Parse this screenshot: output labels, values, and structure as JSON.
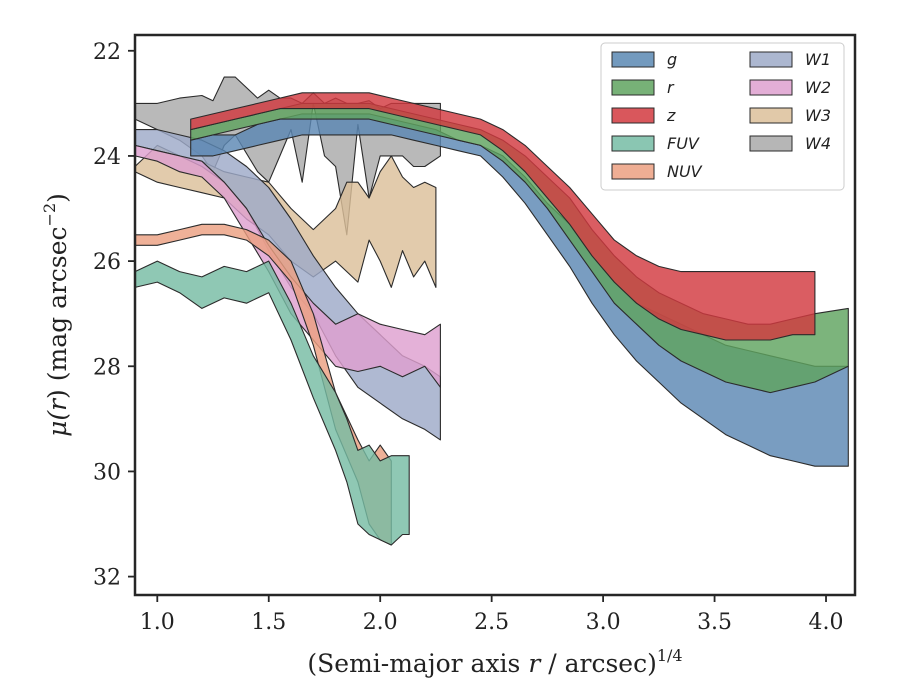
{
  "chart_data": {
    "type": "area",
    "xlabel": "(Semi-major axis r / arcsec)^1/4",
    "xlabel_parts": {
      "prefix": "(Semi-major axis ",
      "var": "r",
      "middle": " / arcsec)",
      "sup": "1/4"
    },
    "ylabel": "μ(r) (mag arcsec^−2)",
    "ylabel_parts": {
      "mu": "μ(",
      "var": "r",
      "close": ")",
      "unit": " (mag arcsec",
      "sup": "−2",
      "end": ")"
    },
    "xlim": [
      0.9,
      4.13
    ],
    "ylim": [
      32.35,
      21.7
    ],
    "y_inverted": true,
    "x_ticks": [
      1.0,
      1.5,
      2.0,
      2.5,
      3.0,
      3.5,
      4.0
    ],
    "x_tick_labels": [
      "1.0",
      "1.5",
      "2.0",
      "2.5",
      "3.0",
      "3.5",
      "4.0"
    ],
    "y_ticks": [
      22,
      24,
      26,
      28,
      30,
      32
    ],
    "y_tick_labels": [
      "22",
      "24",
      "26",
      "28",
      "30",
      "32"
    ],
    "grid": false,
    "legend_position": "top-right",
    "legend_columns": 2,
    "series": [
      {
        "name": "W4",
        "color": "#a9a9a9",
        "x": [
          0.9,
          1.0,
          1.1,
          1.2,
          1.25,
          1.3,
          1.35,
          1.45,
          1.5,
          1.55,
          1.6,
          1.65,
          1.7,
          1.75,
          1.8,
          1.85,
          1.9,
          1.95,
          2.0,
          2.05,
          2.1,
          2.15,
          2.2,
          2.27
        ],
        "y_top": [
          23.0,
          23.0,
          22.9,
          22.85,
          22.95,
          22.5,
          22.5,
          22.9,
          22.75,
          22.9,
          22.9,
          23.0,
          22.8,
          23.0,
          22.9,
          23.0,
          23.0,
          22.95,
          23.1,
          23.0,
          23.0,
          23.0,
          23.0,
          23.0
        ],
        "y_bottom": [
          23.3,
          23.5,
          23.7,
          24.0,
          24.3,
          23.8,
          23.6,
          24.3,
          24.5,
          24.0,
          23.5,
          24.5,
          23.0,
          24.0,
          24.2,
          25.5,
          23.4,
          24.8,
          24.0,
          24.0,
          24.0,
          24.2,
          24.2,
          24.0
        ]
      },
      {
        "name": "W3",
        "color": "#dcc09a",
        "x": [
          0.9,
          1.0,
          1.1,
          1.2,
          1.3,
          1.4,
          1.5,
          1.6,
          1.7,
          1.8,
          1.85,
          1.9,
          1.95,
          2.0,
          2.05,
          2.1,
          2.15,
          2.2,
          2.25
        ],
        "y_top": [
          24.2,
          23.8,
          24.0,
          24.1,
          24.3,
          24.4,
          24.5,
          25.0,
          25.4,
          25.0,
          24.5,
          24.5,
          24.8,
          24.3,
          24.0,
          24.4,
          24.6,
          24.5,
          24.6
        ],
        "y_bottom": [
          24.3,
          24.5,
          24.6,
          24.7,
          24.8,
          25.2,
          25.5,
          26.0,
          26.3,
          26.0,
          26.2,
          26.4,
          25.6,
          26.0,
          26.5,
          25.8,
          26.3,
          26.0,
          26.5
        ]
      },
      {
        "name": "W1",
        "color": "#9eaac8",
        "x": [
          0.9,
          1.0,
          1.1,
          1.2,
          1.3,
          1.4,
          1.5,
          1.6,
          1.7,
          1.8,
          1.9,
          2.0,
          2.1,
          2.2,
          2.27
        ],
        "y_top": [
          23.5,
          23.5,
          23.6,
          23.7,
          23.9,
          24.2,
          24.6,
          25.2,
          25.9,
          26.5,
          27.0,
          27.4,
          27.8,
          28.0,
          28.2
        ],
        "y_bottom": [
          23.8,
          23.9,
          24.0,
          24.2,
          24.5,
          25.0,
          25.8,
          26.5,
          27.0,
          27.8,
          28.4,
          28.7,
          29.0,
          29.2,
          29.4
        ]
      },
      {
        "name": "W2",
        "color": "#dea0cf",
        "x": [
          0.9,
          1.0,
          1.1,
          1.2,
          1.3,
          1.4,
          1.5,
          1.6,
          1.7,
          1.8,
          1.9,
          2.0,
          2.1,
          2.2,
          2.27
        ],
        "y_top": [
          23.8,
          23.9,
          24.0,
          24.1,
          24.5,
          25.0,
          25.7,
          26.3,
          26.8,
          27.2,
          27.0,
          27.2,
          27.3,
          27.4,
          27.2
        ],
        "y_bottom": [
          24.0,
          24.1,
          24.3,
          24.4,
          24.8,
          25.5,
          26.2,
          27.0,
          27.5,
          28.0,
          28.1,
          28.0,
          28.2,
          28.0,
          28.4
        ]
      },
      {
        "name": "NUV",
        "color": "#eca081",
        "x": [
          0.9,
          1.0,
          1.1,
          1.2,
          1.3,
          1.4,
          1.5,
          1.6,
          1.7,
          1.8,
          1.9,
          1.95,
          2.0,
          2.05
        ],
        "y_top": [
          25.5,
          25.5,
          25.4,
          25.3,
          25.3,
          25.4,
          25.6,
          26.0,
          27.0,
          28.5,
          29.4,
          29.8,
          29.5,
          29.8
        ],
        "y_bottom": [
          25.7,
          25.7,
          25.6,
          25.5,
          25.5,
          25.6,
          25.9,
          26.4,
          27.6,
          29.2,
          30.2,
          31.0,
          31.3,
          31.4
        ]
      },
      {
        "name": "FUV",
        "color": "#76bca4",
        "x": [
          0.9,
          1.0,
          1.1,
          1.2,
          1.3,
          1.4,
          1.5,
          1.6,
          1.7,
          1.8,
          1.85,
          1.9,
          1.95,
          2.0,
          2.05,
          2.1,
          2.13
        ],
        "y_top": [
          26.2,
          26.0,
          26.2,
          26.3,
          26.1,
          26.2,
          26.0,
          26.8,
          27.8,
          28.5,
          29.0,
          29.6,
          29.5,
          29.8,
          29.7,
          29.7,
          29.7
        ],
        "y_bottom": [
          26.5,
          26.4,
          26.6,
          26.9,
          26.7,
          26.8,
          26.6,
          27.5,
          28.6,
          29.6,
          30.2,
          31.0,
          31.2,
          31.3,
          31.4,
          31.2,
          31.2
        ]
      },
      {
        "name": "g",
        "color": "#5b88b3",
        "x": [
          1.15,
          1.25,
          1.35,
          1.45,
          1.55,
          1.65,
          1.75,
          1.85,
          1.95,
          2.05,
          2.15,
          2.25,
          2.35,
          2.45,
          2.55,
          2.65,
          2.75,
          2.85,
          2.95,
          3.05,
          3.15,
          3.25,
          3.35,
          3.45,
          3.55,
          3.65,
          3.75,
          3.85,
          3.95,
          4.1
        ],
        "y_top": [
          23.7,
          23.6,
          23.6,
          23.4,
          23.3,
          23.2,
          23.2,
          23.2,
          23.2,
          23.3,
          23.4,
          23.5,
          23.7,
          23.8,
          24.0,
          24.4,
          24.9,
          25.3,
          25.9,
          26.4,
          26.8,
          27.0,
          27.2,
          27.4,
          27.6,
          27.7,
          27.8,
          27.9,
          28.0,
          28.0
        ],
        "y_bottom": [
          24.0,
          24.0,
          23.9,
          23.8,
          23.7,
          23.6,
          23.6,
          23.6,
          23.6,
          23.6,
          23.7,
          23.8,
          23.9,
          24.0,
          24.4,
          24.9,
          25.5,
          26.1,
          26.8,
          27.4,
          27.9,
          28.3,
          28.7,
          29.0,
          29.3,
          29.5,
          29.7,
          29.8,
          29.9,
          29.9
        ]
      },
      {
        "name": "r",
        "color": "#5fa35f",
        "x": [
          1.15,
          1.25,
          1.35,
          1.45,
          1.55,
          1.65,
          1.75,
          1.85,
          1.95,
          2.05,
          2.15,
          2.25,
          2.35,
          2.45,
          2.55,
          2.65,
          2.75,
          2.85,
          2.95,
          3.05,
          3.15,
          3.25,
          3.35,
          3.45,
          3.55,
          3.65,
          3.75,
          3.85,
          3.95,
          4.1
        ],
        "y_top": [
          23.5,
          23.4,
          23.3,
          23.2,
          23.1,
          23.0,
          23.0,
          23.0,
          23.0,
          23.1,
          23.2,
          23.3,
          23.4,
          23.5,
          23.7,
          24.0,
          24.4,
          24.8,
          25.4,
          25.9,
          26.3,
          26.6,
          26.8,
          27.0,
          27.1,
          27.2,
          27.2,
          27.1,
          27.0,
          26.9
        ],
        "y_bottom": [
          23.7,
          23.6,
          23.5,
          23.4,
          23.3,
          23.3,
          23.3,
          23.3,
          23.3,
          23.4,
          23.5,
          23.6,
          23.7,
          23.8,
          24.1,
          24.5,
          25.0,
          25.6,
          26.2,
          26.8,
          27.2,
          27.6,
          27.9,
          28.1,
          28.3,
          28.4,
          28.5,
          28.4,
          28.3,
          28.0
        ]
      },
      {
        "name": "z",
        "color": "#d2393f",
        "x": [
          1.15,
          1.25,
          1.35,
          1.45,
          1.55,
          1.65,
          1.75,
          1.85,
          1.95,
          2.05,
          2.15,
          2.25,
          2.35,
          2.45,
          2.55,
          2.65,
          2.75,
          2.85,
          2.95,
          3.05,
          3.15,
          3.25,
          3.35,
          3.45,
          3.55,
          3.65,
          3.75,
          3.85,
          3.95
        ],
        "y_top": [
          23.3,
          23.2,
          23.1,
          23.0,
          22.9,
          22.8,
          22.8,
          22.8,
          22.8,
          22.9,
          23.0,
          23.1,
          23.2,
          23.3,
          23.5,
          23.8,
          24.2,
          24.6,
          25.1,
          25.6,
          25.9,
          26.1,
          26.2,
          26.2,
          26.2,
          26.2,
          26.2,
          26.2,
          26.2
        ],
        "y_bottom": [
          23.5,
          23.4,
          23.3,
          23.2,
          23.1,
          23.1,
          23.1,
          23.1,
          23.1,
          23.2,
          23.3,
          23.4,
          23.5,
          23.6,
          23.9,
          24.3,
          24.8,
          25.3,
          25.9,
          26.4,
          26.8,
          27.1,
          27.3,
          27.4,
          27.5,
          27.5,
          27.5,
          27.4,
          27.4
        ]
      }
    ]
  }
}
